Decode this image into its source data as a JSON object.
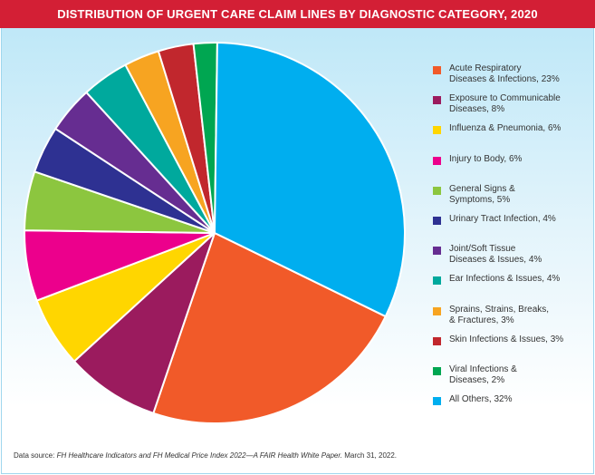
{
  "title": "DISTRIBUTION OF URGENT CARE CLAIM LINES BY DIAGNOSTIC CATEGORY, 2020",
  "footnote": {
    "prefix": "Data source: ",
    "source_italic": "FH Healthcare Indicators and FH Medical Price Index 2022—A FAIR Health White Paper.",
    "suffix": " March 31, 2022."
  },
  "colors": {
    "title_bar": "#d31f35",
    "background_top": "#bfe8f8"
  },
  "chart_data": {
    "type": "pie",
    "legend_placement": "right",
    "slices": [
      {
        "label": "Acute Respiratory\nDiseases & Infections, 23%",
        "value": 23,
        "color": "#f15a29"
      },
      {
        "label": "Exposure to Communicable\nDiseases, 8%",
        "value": 8,
        "color": "#9b1b5e"
      },
      {
        "label": "Influenza & Pneumonia, 6%",
        "value": 6,
        "color": "#ffd600"
      },
      {
        "label": "Injury to Body, 6%",
        "value": 6,
        "color": "#ec008c"
      },
      {
        "label": "General Signs &\nSymptoms, 5%",
        "value": 5,
        "color": "#8cc63f"
      },
      {
        "label": "Urinary Tract Infection, 4%",
        "value": 4,
        "color": "#2e3192"
      },
      {
        "label": "Joint/Soft Tissue\nDiseases & Issues, 4%",
        "value": 4,
        "color": "#662d91"
      },
      {
        "label": "Ear Infections & Issues, 4%",
        "value": 4,
        "color": "#00a99d"
      },
      {
        "label": "Sprains, Strains, Breaks,\n& Fractures, 3%",
        "value": 3,
        "color": "#f7a421"
      },
      {
        "label": "Skin Infections & Issues, 3%",
        "value": 3,
        "color": "#c1272d"
      },
      {
        "label": "Viral Infections &\nDiseases, 2%",
        "value": 2,
        "color": "#00a651"
      },
      {
        "label": "All Others, 32%",
        "value": 32,
        "color": "#00aeef"
      }
    ]
  }
}
